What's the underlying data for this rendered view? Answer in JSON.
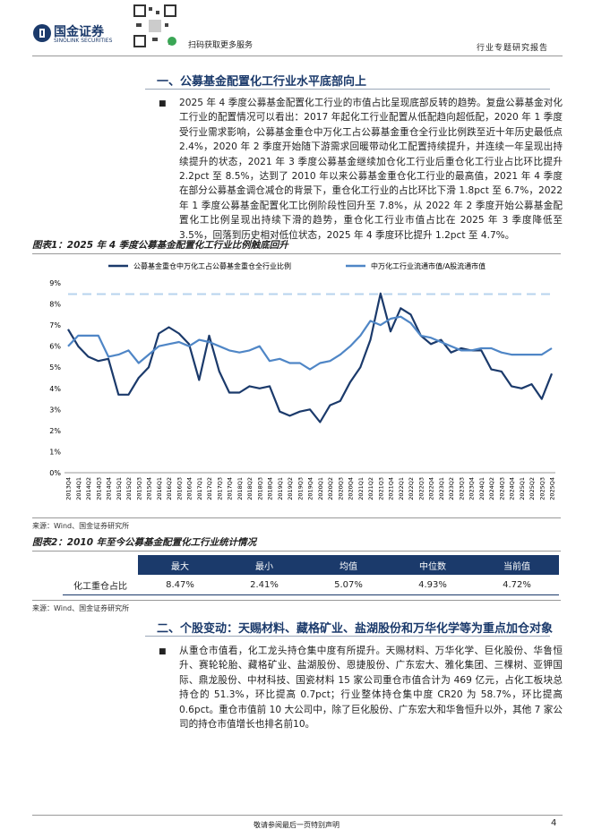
{
  "header": {
    "logo": "国金证券",
    "logo_en": "SINOLINK SECURITIES",
    "qr_caption": "扫码获取更多服务",
    "report_type": "行业专题研究报告"
  },
  "sections": [
    {
      "title": "一、公募基金配置化工行业水平底部向上",
      "paragraph": "2025 年 4 季度公募基金配置化工行业的市值占比呈现底部反转的趋势。复盘公募基金对化工行业的配置情况可以看出：2017 年起化工行业配置从低配趋向超低配，2020 年 1 季度受行业需求影响，公募基金重仓中万化工占公募基金重仓全行业比例跌至近十年历史最低点 2.4%，2020 年 2 季度开始随下游需求回暖带动化工配置持续提升，并连续一年呈现出持续提升的状态，2021 年 3 季度公募基金继续加仓化工行业后重仓化工行业占比环比提升 2.2pct 至 8.5%，达到了 2010 年以来公募基金重仓化工行业的最高值，2021 年 4 季度在部分公募基金调仓减仓的背景下，重仓化工行业的占比环比下滑 1.8pct 至 6.7%，2022 年 1 季度公募基金配置化工比例阶段性回升至 7.8%，从 2022 年 2 季度开始公募基金配置化工比例呈现出持续下滑的趋势，重仓化工行业市值占比在 2025 年 3 季度降低至 3.5%，回落到历史相对低位状态，2025 年 4 季度环比提升 1.2pct 至 4.7%。"
    },
    {
      "title": "二、个股变动：天赐材料、藏格矿业、盐湖股份和万华化学等为重点加仓对象",
      "paragraph": "从重仓市值看，化工龙头持仓集中度有所提升。天赐材料、万华化学、巨化股份、华鲁恒升、赛轮轮胎、藏格矿业、盐湖股份、恩捷股份、广东宏大、雅化集团、三棵树、亚钾国际、鼎龙股份、中材科技、国瓷材料 15 家公司重仓市值合计为 469 亿元，占化工板块总持仓的 51.3%，环比提高 0.7pct；行业整体持仓集中度 CR20 为 58.7%，环比提高 0.6pct。重仓市值前 10 大公司中，除了巨化股份、广东宏大和华鲁恒升以外，其他 7 家公司的持仓市值增长也排名前10。"
    }
  ],
  "figure1": {
    "title": "图表1：2025 年 4 季度公募基金配置化工行业比例触底回升",
    "source": "来源：Wind、国金证券研究所"
  },
  "chart_data": {
    "type": "line",
    "categories": [
      "2013Q4",
      "2014Q1",
      "2014Q2",
      "2014Q3",
      "2014Q4",
      "2015Q1",
      "2015Q2",
      "2015Q3",
      "2015Q4",
      "2016Q1",
      "2016Q2",
      "2016Q3",
      "2016Q4",
      "2017Q1",
      "2017Q2",
      "2017Q3",
      "2017Q4",
      "2018Q1",
      "2018Q2",
      "2018Q3",
      "2018Q4",
      "2019Q1",
      "2019Q2",
      "2019Q3",
      "2019Q4",
      "2020Q1",
      "2020Q2",
      "2020Q3",
      "2020Q4",
      "2021Q1",
      "2021Q2",
      "2021Q3",
      "2021Q4",
      "2022Q1",
      "2022Q2",
      "2022Q3",
      "2022Q4",
      "2023Q1",
      "2023Q2",
      "2023Q3",
      "2023Q4",
      "2024Q1",
      "2024Q2",
      "2024Q3",
      "2024Q4",
      "2025Q1",
      "2025Q2",
      "2025Q3",
      "2025Q4"
    ],
    "series": [
      {
        "name": "公募基金重仓中万化工占公募基金重仓全行业比例",
        "color": "#1b3a6b",
        "values": [
          6.8,
          6.0,
          5.5,
          5.3,
          5.4,
          3.7,
          3.7,
          4.5,
          5.0,
          6.6,
          6.9,
          6.6,
          6.1,
          4.4,
          6.5,
          4.8,
          3.8,
          3.8,
          4.1,
          4.0,
          4.1,
          2.9,
          2.7,
          2.9,
          3.0,
          2.4,
          3.2,
          3.4,
          4.3,
          5.0,
          6.3,
          8.5,
          6.7,
          7.8,
          7.5,
          6.5,
          6.1,
          6.3,
          5.7,
          5.9,
          5.8,
          5.8,
          4.9,
          4.8,
          4.1,
          4.0,
          4.2,
          3.5,
          4.7
        ]
      },
      {
        "name": "中万化工行业流通市值/A股流通市值",
        "color": "#4f86c6",
        "values": [
          6.0,
          6.5,
          6.5,
          6.5,
          5.5,
          5.6,
          5.8,
          5.2,
          5.6,
          6.0,
          6.1,
          6.2,
          6.0,
          6.3,
          6.2,
          6.0,
          5.8,
          5.7,
          5.8,
          6.0,
          5.3,
          5.4,
          5.2,
          5.2,
          4.9,
          5.2,
          5.3,
          5.6,
          6.0,
          6.5,
          7.2,
          7.0,
          7.3,
          7.4,
          7.1,
          6.5,
          6.4,
          6.2,
          6.0,
          5.8,
          5.8,
          5.9,
          5.9,
          5.7,
          5.6,
          5.6,
          5.6,
          5.6,
          5.9
        ]
      }
    ],
    "reference_line": {
      "value": 8.47,
      "color": "#b7d3ee"
    },
    "ylim": [
      0,
      9
    ],
    "yticks": [
      {
        "value": 0,
        "label": "0%"
      },
      {
        "value": 1,
        "label": "1%"
      },
      {
        "value": 2,
        "label": "2%"
      },
      {
        "value": 3,
        "label": "3%"
      },
      {
        "value": 4,
        "label": "4%"
      },
      {
        "value": 5,
        "label": "5%"
      },
      {
        "value": 6,
        "label": "6%"
      },
      {
        "value": 7,
        "label": "7%"
      },
      {
        "value": 8,
        "label": "8%"
      },
      {
        "value": 9,
        "label": "9%"
      }
    ],
    "grid": false
  },
  "figure2": {
    "title": "图表2：2010 年至今公募基金配置化工行业统计情况",
    "source": "来源：Wind、国金证券研究所"
  },
  "table": {
    "header": [
      "最大",
      "最小",
      "均值",
      "中位数",
      "当前值"
    ],
    "rows": [
      [
        "化工重仓占比",
        "8.47%",
        "2.41%",
        "5.07%",
        "4.93%",
        "4.72%"
      ]
    ]
  },
  "footer": {
    "disclaimer": "敬请参阅最后一页特别声明",
    "page": "4"
  }
}
